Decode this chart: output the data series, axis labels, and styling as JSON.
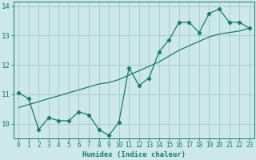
{
  "xlabel": "Humidex (Indice chaleur)",
  "bg_color": "#cce8e8",
  "line_color": "#1a7a6e",
  "grid_color": "#a8cccc",
  "xlim": [
    -0.5,
    23.5
  ],
  "ylim": [
    9.5,
    14.15
  ],
  "yticks": [
    10,
    11,
    12,
    13,
    14
  ],
  "xticks": [
    0,
    1,
    2,
    3,
    4,
    5,
    6,
    7,
    8,
    9,
    10,
    11,
    12,
    13,
    14,
    15,
    16,
    17,
    18,
    19,
    20,
    21,
    22,
    23
  ],
  "zigzag_x": [
    0,
    1,
    2,
    3,
    4,
    5,
    6,
    7,
    8,
    9,
    10,
    11,
    12,
    13,
    14,
    15,
    16,
    17,
    18,
    19,
    20,
    21,
    22,
    23
  ],
  "zigzag_y": [
    11.05,
    10.85,
    9.8,
    10.2,
    10.1,
    10.1,
    10.4,
    10.3,
    9.8,
    9.6,
    10.05,
    11.9,
    11.3,
    11.55,
    12.45,
    12.85,
    13.45,
    13.45,
    13.1,
    13.75,
    13.9,
    13.45,
    13.45,
    13.25
  ],
  "trend_x": [
    0,
    1,
    2,
    3,
    4,
    5,
    6,
    7,
    8,
    9,
    10,
    11,
    12,
    13,
    14,
    15,
    16,
    17,
    18,
    19,
    20,
    21,
    22,
    23
  ],
  "trend_y": [
    10.55,
    10.65,
    10.75,
    10.85,
    10.95,
    11.05,
    11.15,
    11.25,
    11.35,
    11.4,
    11.5,
    11.65,
    11.8,
    11.95,
    12.1,
    12.3,
    12.5,
    12.65,
    12.8,
    12.95,
    13.05,
    13.1,
    13.15,
    13.25
  ]
}
